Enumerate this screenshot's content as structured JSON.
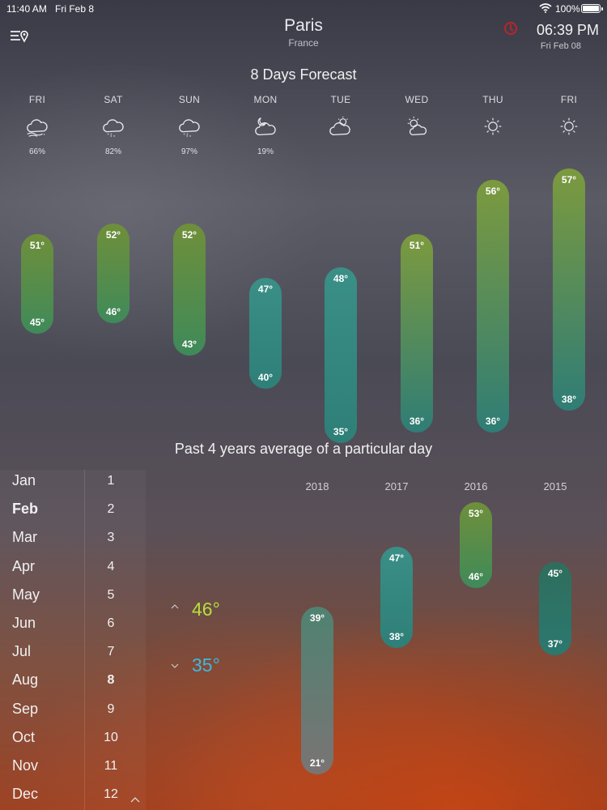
{
  "status_bar": {
    "time": "11:40 AM",
    "date": "Fri Feb 8",
    "battery": "100%"
  },
  "header": {
    "city": "Paris",
    "country": "France",
    "clock_time": "06:39 PM",
    "clock_date": "Fri Feb 08"
  },
  "forecast": {
    "title": "8 Days Forecast",
    "days": [
      {
        "name": "FRI",
        "icon": "snow-wind-icon",
        "precip": "66%",
        "high": "51°",
        "low": "45°",
        "high_val": 51,
        "low_val": 45,
        "color": "green"
      },
      {
        "name": "SAT",
        "icon": "snow-cloud-icon",
        "precip": "82%",
        "high": "52°",
        "low": "46°",
        "high_val": 52,
        "low_val": 46,
        "color": "green"
      },
      {
        "name": "SUN",
        "icon": "snow-cloud-icon",
        "precip": "97%",
        "high": "52°",
        "low": "43°",
        "high_val": 52,
        "low_val": 43,
        "color": "green"
      },
      {
        "name": "MON",
        "icon": "night-partly-cloudy-icon",
        "precip": "19%",
        "high": "47°",
        "low": "40°",
        "high_val": 47,
        "low_val": 40,
        "color": "teal"
      },
      {
        "name": "TUE",
        "icon": "partly-cloudy-icon",
        "precip": "",
        "high": "48°",
        "low": "35°",
        "high_val": 48,
        "low_val": 35,
        "color": "teal"
      },
      {
        "name": "WED",
        "icon": "partly-sunny-icon",
        "precip": "",
        "high": "51°",
        "low": "36°",
        "high_val": 51,
        "low_val": 36,
        "color": "olive"
      },
      {
        "name": "THU",
        "icon": "sun-icon",
        "precip": "",
        "high": "56°",
        "low": "36°",
        "high_val": 56,
        "low_val": 36,
        "color": "olive"
      },
      {
        "name": "FRI",
        "icon": "sun-icon",
        "precip": "",
        "high": "57°",
        "low": "38°",
        "high_val": 57,
        "low_val": 38,
        "color": "olive"
      }
    ]
  },
  "past": {
    "title": "Past 4 years average of  a particular day",
    "avg_high": "46°",
    "avg_low": "35°",
    "years": [
      {
        "label": "2018",
        "high": "39°",
        "low": "21°",
        "high_val": 39,
        "low_val": 21,
        "color": "gray"
      },
      {
        "label": "2017",
        "high": "47°",
        "low": "38°",
        "high_val": 47,
        "low_val": 38,
        "color": "teal"
      },
      {
        "label": "2016",
        "high": "53°",
        "low": "46°",
        "high_val": 53,
        "low_val": 46,
        "color": "green"
      },
      {
        "label": "2015",
        "high": "45°",
        "low": "37°",
        "high_val": 45,
        "low_val": 37,
        "color": "teal-dark"
      }
    ]
  },
  "picker": {
    "months": [
      "Jan",
      "Feb",
      "Mar",
      "Apr",
      "May",
      "Jun",
      "Jul",
      "Aug",
      "Sep",
      "Oct",
      "Nov",
      "Dec"
    ],
    "selected_month": "Feb",
    "days": [
      "1",
      "2",
      "3",
      "4",
      "5",
      "6",
      "7",
      "8",
      "9",
      "10",
      "11",
      "12"
    ],
    "selected_day": "8"
  },
  "colors": {
    "green_top": "#6f8f3a",
    "green_bottom": "#3f8a5a",
    "teal_top": "#3a8f86",
    "teal_bottom": "#2e7f78",
    "olive_top": "#7c9a3e",
    "olive_bottom": "#2f7d76",
    "gray_top": "#4f8272",
    "gray_bottom": "#7a7474",
    "avg_high": "#b6e03a",
    "avg_low": "#3fb8e0"
  }
}
